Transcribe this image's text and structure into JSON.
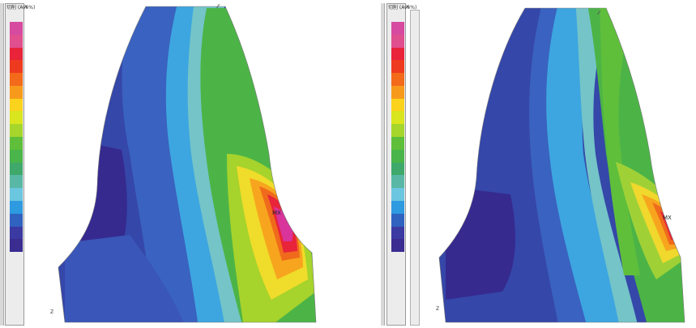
{
  "left_panel": {
    "title": "切削 (Ave%)",
    "close": "×",
    "max_label": "MX",
    "axis_label": "Z",
    "legend_colors": [
      "#d64aa0",
      "#e04f8e",
      "#e8233a",
      "#ee3a1e",
      "#f26a1a",
      "#f79a1c",
      "#fbd21c",
      "#d9e51e",
      "#a6d62b",
      "#5fbf3b",
      "#49b54a",
      "#3ea96a",
      "#58b8a5",
      "#6bc6e0",
      "#2e9ae0",
      "#3062c0",
      "#3b3aa2",
      "#3a2c90"
    ]
  },
  "right_panel": {
    "title": "切削 (Ave%)",
    "close": "×",
    "max_label": "MX",
    "axis_label": "Z",
    "legend_colors": [
      "#d64aa0",
      "#e04f8e",
      "#e8233a",
      "#ee3a1e",
      "#f26a1a",
      "#f79a1c",
      "#fbd21c",
      "#d9e51e",
      "#a6d62b",
      "#5fbf3b",
      "#49b54a",
      "#3ea96a",
      "#58b8a5",
      "#6bc6e0",
      "#2e9ae0",
      "#3062c0",
      "#3b3aa2",
      "#3a2c90"
    ]
  }
}
